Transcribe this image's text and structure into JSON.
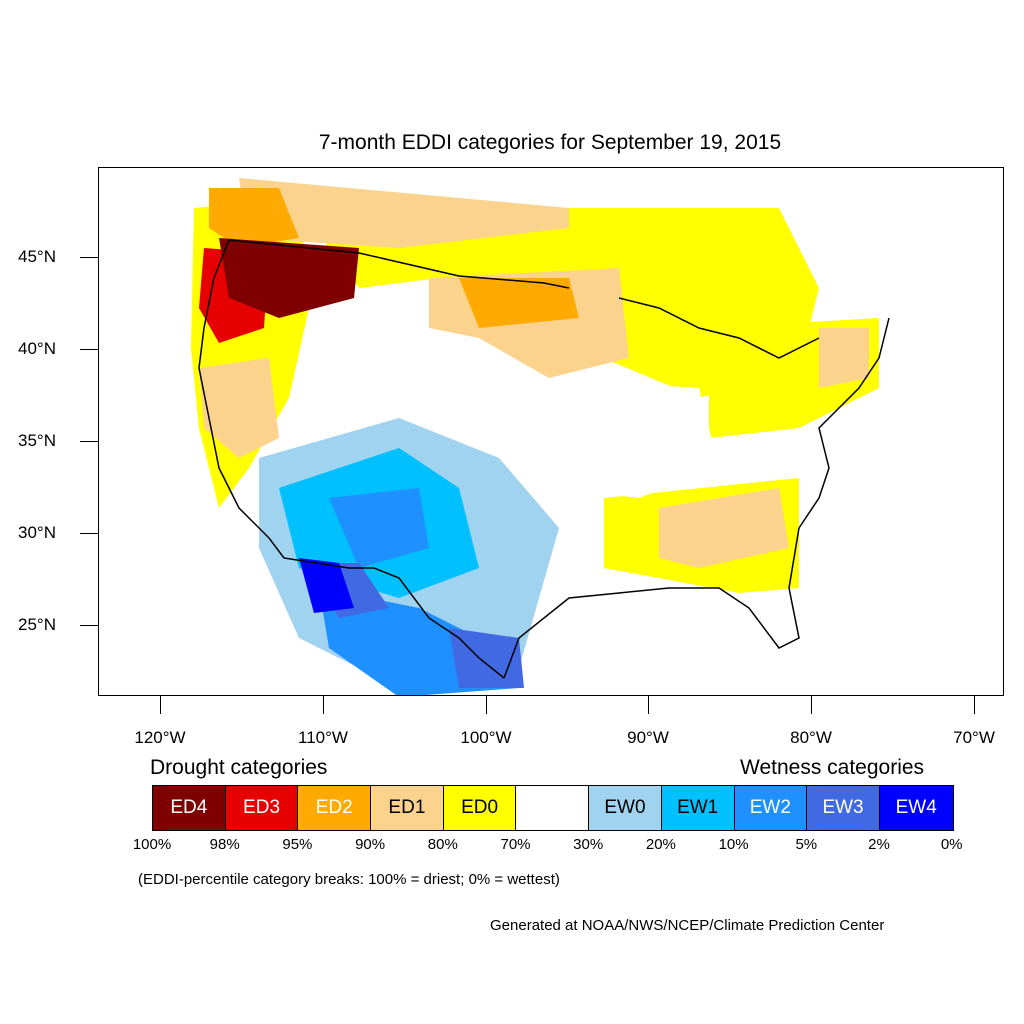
{
  "title": "7-month EDDI categories for September 19, 2015",
  "axes": {
    "lat_labels": [
      "45°N",
      "40°N",
      "35°N",
      "30°N",
      "25°N"
    ],
    "lon_labels": [
      "120°W",
      "110°W",
      "100°W",
      "90°W",
      "80°W",
      "70°W"
    ]
  },
  "legend": {
    "drought_heading": "Drought categories",
    "wetness_heading": "Wetness categories",
    "categories": [
      {
        "label": "ED4",
        "color": "#7f0000",
        "text_color": "#ffffff"
      },
      {
        "label": "ED3",
        "color": "#e60000",
        "text_color": "#ffffff"
      },
      {
        "label": "ED2",
        "color": "#ffaa00",
        "text_color": "#ffffff"
      },
      {
        "label": "ED1",
        "color": "#fcd38d",
        "text_color": "#000000"
      },
      {
        "label": "ED0",
        "color": "#ffff00",
        "text_color": "#000000"
      },
      {
        "label": "",
        "color": "#ffffff",
        "text_color": "#000000"
      },
      {
        "label": "EW0",
        "color": "#9fd3f0",
        "text_color": "#000000"
      },
      {
        "label": "EW1",
        "color": "#00c0ff",
        "text_color": "#000000"
      },
      {
        "label": "EW2",
        "color": "#1e90ff",
        "text_color": "#ffffff"
      },
      {
        "label": "EW3",
        "color": "#4169e1",
        "text_color": "#ffffff"
      },
      {
        "label": "EW4",
        "color": "#0000ff",
        "text_color": "#ffffff"
      }
    ],
    "percentiles": [
      "100%",
      "98%",
      "95%",
      "90%",
      "80%",
      "70%",
      "30%",
      "20%",
      "10%",
      "5%",
      "2%",
      "0%"
    ]
  },
  "note": "(EDDI-percentile category breaks: 100% = driest; 0% = wettest)",
  "credit": "Generated at NOAA/NWS/NCEP/Climate Prediction Center"
}
